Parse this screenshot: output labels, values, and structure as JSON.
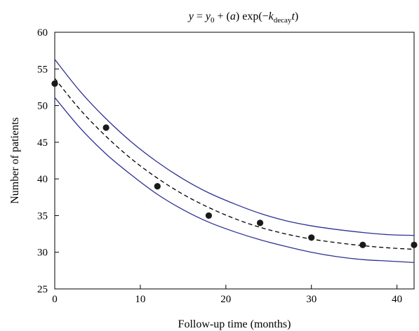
{
  "chart_data": {
    "type": "scatter",
    "title": "",
    "equation": {
      "y": "y",
      "eq": " = ",
      "y0": "y",
      "y0_sub": "0",
      "plus": " + (",
      "a": "a",
      "exp": ") exp(−",
      "k": "k",
      "k_sub": "decay",
      "t": "t",
      "close": ")"
    },
    "xlabel": "Follow-up time (months)",
    "ylabel": "Number of patients",
    "xlim": [
      0,
      42
    ],
    "ylim": [
      25,
      60
    ],
    "xticks": [
      0,
      10,
      20,
      30,
      40
    ],
    "yticks": [
      25,
      30,
      35,
      40,
      45,
      50,
      55,
      60
    ],
    "grid": false,
    "series": [
      {
        "kind": "points",
        "x": [
          0,
          6,
          12,
          18,
          24,
          30,
          36,
          42
        ],
        "y": [
          53,
          47,
          39,
          35,
          34,
          32,
          31,
          31
        ],
        "color": "#1a1a1a"
      },
      {
        "kind": "fit",
        "style": "dashed",
        "color": "#000000",
        "x": [
          0,
          3,
          6,
          9,
          12,
          15,
          18,
          21,
          24,
          27,
          30,
          33,
          36,
          39,
          42
        ],
        "y": [
          53.7,
          49.4,
          45.8,
          42.7,
          40.1,
          37.9,
          36.1,
          34.6,
          33.4,
          32.5,
          31.8,
          31.3,
          30.9,
          30.6,
          30.4
        ]
      },
      {
        "kind": "band-upper",
        "style": "solid",
        "color": "#2e3192",
        "x": [
          0,
          3,
          6,
          9,
          12,
          15,
          18,
          21,
          24,
          27,
          30,
          33,
          36,
          39,
          42
        ],
        "y": [
          56.3,
          51.9,
          48.2,
          45.0,
          42.3,
          40.0,
          38.1,
          36.6,
          35.3,
          34.3,
          33.6,
          33.1,
          32.7,
          32.4,
          32.3
        ]
      },
      {
        "kind": "band-lower",
        "style": "solid",
        "color": "#2e3192",
        "x": [
          0,
          3,
          6,
          9,
          12,
          15,
          18,
          21,
          24,
          27,
          30,
          33,
          36,
          39,
          42
        ],
        "y": [
          51.1,
          46.9,
          43.4,
          40.5,
          37.9,
          35.8,
          34.1,
          32.8,
          31.7,
          30.8,
          30.0,
          29.4,
          29.0,
          28.8,
          28.6
        ]
      }
    ]
  }
}
